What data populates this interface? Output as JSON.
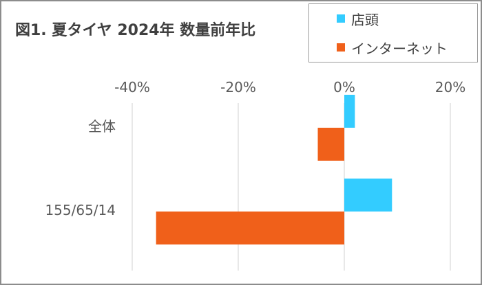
{
  "chart_data": {
    "type": "bar",
    "orientation": "horizontal",
    "title": "図1. 夏タイヤ 2024年 数量前年比",
    "categories": [
      "全体",
      "155/65/14"
    ],
    "series": [
      {
        "name": "店頭",
        "color": "#33CCFF",
        "values": [
          2,
          9
        ]
      },
      {
        "name": "インターネット",
        "color": "#F0601A",
        "values": [
          -5,
          -35.5
        ]
      }
    ],
    "xlim": [
      -40,
      20
    ],
    "xticks": [
      -40,
      -20,
      0,
      20
    ],
    "xtick_labels": [
      "-40%",
      "-20%",
      "0%",
      "20%"
    ],
    "grid": true,
    "legend_position": "top-right"
  }
}
